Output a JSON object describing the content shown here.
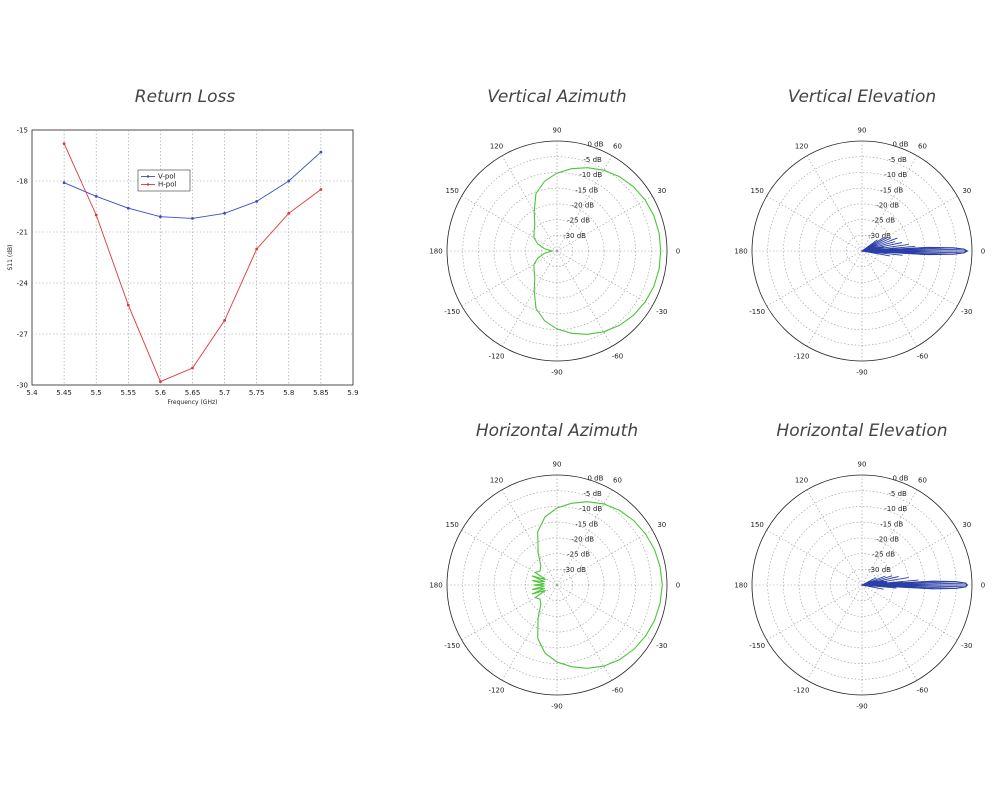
{
  "titles": {
    "return_loss": "Return Loss",
    "v_az": "Vertical Azimuth",
    "v_el": "Vertical Elevation",
    "h_az": "Horizontal Azimuth",
    "h_el": "Horizontal Elevation"
  },
  "colors": {
    "vpol": "#3a4ec4",
    "hpol": "#e0373a",
    "azimuth": "#4cc43a",
    "elevation": "#2b3fa8"
  },
  "chart_data": [
    {
      "type": "line",
      "title": "Return Loss",
      "xlabel": "Frequency (GHz)",
      "ylabel": "S11 (dB)",
      "xlim": [
        5.4,
        5.9
      ],
      "ylim": [
        -30,
        -15
      ],
      "xticks": [
        "5.4",
        "5.45",
        "5.5",
        "5.55",
        "5.6",
        "5.65",
        "5.7",
        "5.75",
        "5.8",
        "5.85",
        "5.9"
      ],
      "yticks": [
        "-15",
        "-18",
        "-21",
        "-24",
        "-27",
        "-30"
      ],
      "grid": true,
      "legend": "inside-upper-left",
      "x": [
        5.45,
        5.5,
        5.55,
        5.6,
        5.65,
        5.7,
        5.75,
        5.8,
        5.85
      ],
      "series": [
        {
          "name": "V-pol",
          "values": [
            -18.1,
            -18.9,
            -19.6,
            -20.1,
            -20.2,
            -19.9,
            -19.2,
            -18.0,
            -16.3
          ]
        },
        {
          "name": "H-pol",
          "values": [
            -15.8,
            -20.0,
            -25.3,
            -29.8,
            -29.0,
            -26.2,
            -22.0,
            -19.9,
            -18.5
          ]
        }
      ]
    },
    {
      "type": "polar",
      "title": "Vertical Azimuth",
      "r_labels": [
        "0 dB",
        "-5 dB",
        "-10 dB",
        "-15 dB",
        "-20 dB",
        "-25 dB",
        "-30 dB"
      ],
      "angle_labels": [
        "0",
        "30",
        "60",
        "90",
        "120",
        "150",
        "180",
        "-150",
        "-120",
        "-90",
        "-60",
        "-30"
      ],
      "rmin": -35,
      "rmax": 0,
      "pattern": {
        "angle": [
          0,
          10,
          20,
          30,
          40,
          50,
          60,
          70,
          80,
          90,
          100,
          110,
          120,
          130,
          140,
          150,
          160,
          170,
          180,
          190,
          200,
          210,
          220,
          230,
          240,
          250,
          260,
          270,
          280,
          290,
          300,
          310,
          320,
          330,
          340,
          350,
          360
        ],
        "db": [
          -2,
          -2,
          -2.2,
          -2.6,
          -3.2,
          -4.1,
          -5.3,
          -6.8,
          -8.4,
          -10.2,
          -12.4,
          -15.5,
          -20.5,
          -24,
          -25.5,
          -26.5,
          -28.5,
          -31,
          -33.5,
          -31,
          -28.5,
          -26.5,
          -25.5,
          -24,
          -20.5,
          -15.5,
          -12.4,
          -10.2,
          -8.4,
          -6.8,
          -5.3,
          -4.1,
          -3.2,
          -2.6,
          -2.2,
          -2,
          -2
        ]
      }
    },
    {
      "type": "polar",
      "title": "Vertical Elevation",
      "r_labels": [
        "0 dB",
        "-5 dB",
        "-10 dB",
        "-15 dB",
        "-20 dB",
        "-25 dB",
        "-30 dB"
      ],
      "angle_labels": [
        "0",
        "30",
        "60",
        "90",
        "120",
        "150",
        "180",
        "-150",
        "-120",
        "-90",
        "-60",
        "-30"
      ],
      "rmin": -35,
      "rmax": 0,
      "pattern": {
        "angle": [
          -12,
          -10,
          -8,
          -6,
          -4,
          -3,
          -2,
          -1,
          0,
          1,
          2,
          3,
          4,
          5,
          6,
          8,
          10,
          12,
          14,
          16,
          18,
          20,
          22,
          24,
          26,
          28,
          30,
          32,
          34,
          36,
          40
        ],
        "db": [
          -35,
          -26,
          -33,
          -22,
          -30,
          -14,
          -6,
          -2.5,
          -1.5,
          -2.5,
          -6,
          -14,
          -24,
          -18,
          -30,
          -20,
          -28,
          -22,
          -30,
          -24,
          -31,
          -23,
          -30,
          -25,
          -31,
          -26,
          -32,
          -27,
          -33,
          -29,
          -35
        ]
      }
    },
    {
      "type": "polar",
      "title": "Horizontal Azimuth",
      "r_labels": [
        "0 dB",
        "-5 dB",
        "-10 dB",
        "-15 dB",
        "-20 dB",
        "-25 dB",
        "-30 dB"
      ],
      "angle_labels": [
        "0",
        "30",
        "60",
        "90",
        "120",
        "150",
        "180",
        "-150",
        "-120",
        "-90",
        "-60",
        "-30"
      ],
      "rmin": -35,
      "rmax": 0,
      "pattern": {
        "angle": [
          0,
          10,
          20,
          30,
          40,
          50,
          60,
          70,
          80,
          90,
          100,
          110,
          120,
          130,
          140,
          150,
          155,
          160,
          165,
          170,
          175,
          180,
          185,
          190,
          195,
          200,
          205,
          210,
          220,
          230,
          240,
          250,
          260,
          270,
          280,
          290,
          300,
          310,
          320,
          330,
          340,
          350,
          360
        ],
        "db": [
          -1.5,
          -1.7,
          -2,
          -2.5,
          -3.1,
          -4,
          -5.2,
          -6.8,
          -8.6,
          -10.5,
          -13,
          -17,
          -23,
          -27,
          -28,
          -27,
          -31,
          -26.5,
          -31,
          -27,
          -31,
          -27.5,
          -31,
          -27,
          -31,
          -26.5,
          -31,
          -27,
          -28,
          -27,
          -23,
          -17,
          -13,
          -10.5,
          -8.6,
          -6.8,
          -5.2,
          -4,
          -3.1,
          -2.5,
          -2,
          -1.7,
          -1.5
        ]
      }
    },
    {
      "type": "polar",
      "title": "Horizontal Elevation",
      "r_labels": [
        "0 dB",
        "-5 dB",
        "-10 dB",
        "-15 dB",
        "-20 dB",
        "-25 dB",
        "-30 dB"
      ],
      "angle_labels": [
        "0",
        "30",
        "60",
        "90",
        "120",
        "150",
        "180",
        "-150",
        "-120",
        "-90",
        "-60",
        "-30"
      ],
      "rmin": -35,
      "rmax": 0,
      "pattern": {
        "angle": [
          -14,
          -11,
          -8,
          -5,
          -3,
          -2,
          -1,
          0,
          1,
          2,
          3,
          4,
          5,
          7,
          9,
          11,
          13,
          15,
          17,
          19,
          21,
          24,
          27,
          30
        ],
        "db": [
          -34,
          -28,
          -32,
          -24,
          -12,
          -5,
          -2,
          -1.5,
          -2,
          -5,
          -12,
          -22,
          -17,
          -27,
          -20,
          -28,
          -23,
          -30,
          -25,
          -31,
          -27,
          -32,
          -30,
          -35
        ]
      }
    }
  ]
}
